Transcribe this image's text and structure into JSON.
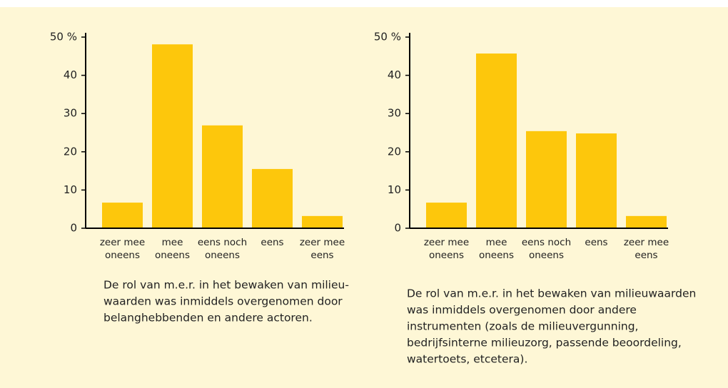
{
  "chart_data": [
    {
      "type": "bar",
      "categories": [
        [
          "zeer mee",
          "oneens"
        ],
        [
          "mee",
          "oneens"
        ],
        [
          "eens noch",
          "oneens"
        ],
        [
          "eens"
        ],
        [
          "zeer mee",
          "eens"
        ]
      ],
      "values": [
        6.7,
        48.1,
        26.9,
        15.5,
        3.2
      ],
      "color": "#fdc70c",
      "ylim": [
        0,
        50
      ],
      "yticks": [
        0,
        10,
        20,
        30,
        40,
        {
          "value": 50,
          "label": "50 %"
        }
      ],
      "caption": [
        "De rol van m.e.r. in het bewaken van milieu-",
        "waarden was inmiddels overgenomen door",
        "belanghebbenden en andere actoren."
      ]
    },
    {
      "type": "bar",
      "categories": [
        [
          "zeer mee",
          "oneens"
        ],
        [
          "mee",
          "oneens"
        ],
        [
          "eens noch",
          "oneens"
        ],
        [
          "eens"
        ],
        [
          "zeer mee",
          "eens"
        ]
      ],
      "values": [
        6.7,
        45.7,
        25.4,
        24.8,
        3.2
      ],
      "color": "#fdc70c",
      "ylim": [
        0,
        50
      ],
      "yticks": [
        0,
        10,
        20,
        30,
        40,
        {
          "value": 50,
          "label": "50 %"
        }
      ],
      "caption": [
        "De rol van m.e.r. in het bewaken van milieuwaarden",
        "was inmiddels overgenomen door andere",
        "instrumenten (zoals de milieuvergunning,",
        "bedrijfsinterne milieuzorg, passende beoordeling,",
        "watertoets, etcetera)."
      ]
    }
  ]
}
